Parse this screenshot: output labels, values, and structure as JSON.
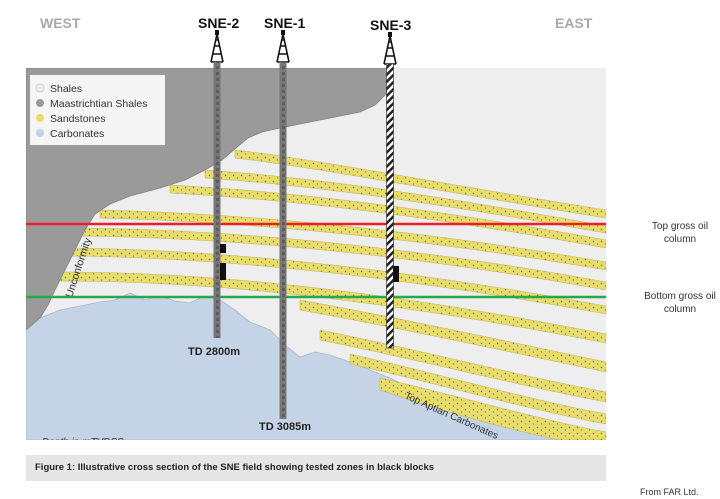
{
  "header": {
    "west": "WEST",
    "east": "EAST"
  },
  "wells": [
    {
      "name": "SNE-2",
      "td": "TD 2800m"
    },
    {
      "name": "SNE-1",
      "td": "TD 3085m"
    },
    {
      "name": "SNE-3"
    }
  ],
  "legend": [
    {
      "label": "Shales",
      "color": "#ececec"
    },
    {
      "label": "Maastrichtian Shales",
      "color": "#9a9a9a"
    },
    {
      "label": "Sandstones",
      "color": "#e8dc6a"
    },
    {
      "label": "Carbonates",
      "color": "#c4d4e6"
    }
  ],
  "labels": {
    "unconformity": "Unconformity",
    "top_aptian": "Top Aptian Carbonates",
    "depth": "Depth in mTVDSS"
  },
  "lines": {
    "top_oil": {
      "label": "Top gross oil column",
      "color": "#e8202a"
    },
    "bottom_oil": {
      "label": "Bottom gross oil column",
      "color": "#27a84a"
    }
  },
  "caption": "Figure 1: Illustrative cross section of the SNE field showing tested zones in black blocks",
  "source": "From FAR Ltd."
}
